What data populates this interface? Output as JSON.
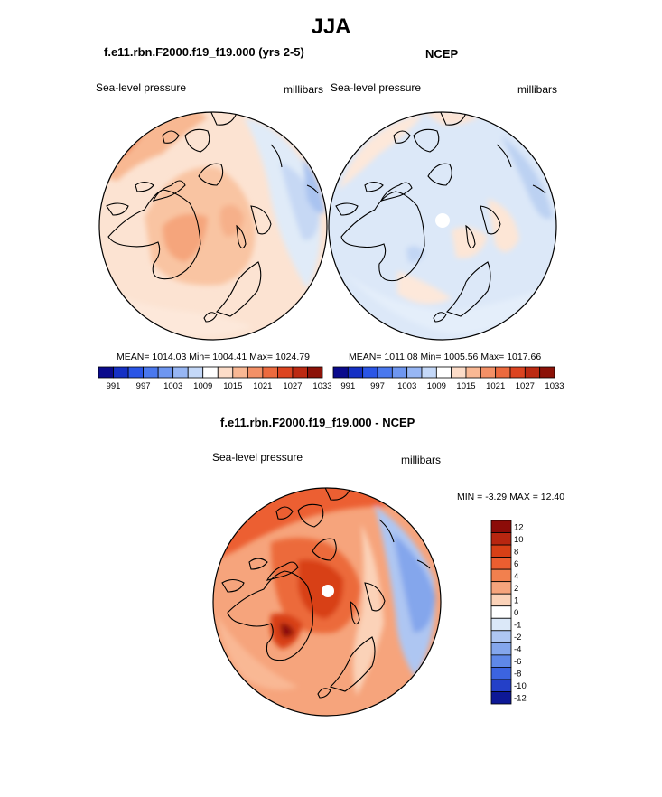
{
  "page": {
    "title": "JJA"
  },
  "panels": [
    {
      "id": "model",
      "title": "f.e11.rbn.F2000.f19_f19.000 (yrs 2-5)",
      "variable_label": "Sea-level pressure",
      "units_label": "millibars",
      "stats_text": "MEAN= 1014.03  Min= 1004.41  Max= 1024.79"
    },
    {
      "id": "obs",
      "title": "NCEP",
      "variable_label": "Sea-level pressure",
      "units_label": "millibars",
      "stats_text": "MEAN= 1011.08  Min= 1005.56  Max= 1017.66"
    },
    {
      "id": "diff",
      "title": "f.e11.rbn.F2000.f19_f19.000 - NCEP",
      "variable_label": "Sea-level pressure",
      "units_label": "millibars",
      "stats_text": "MIN =  -3.29 MAX =  12.40"
    }
  ],
  "colors": {
    "abs_scale": [
      "#0a0a8c",
      "#1530c4",
      "#2a55e6",
      "#4a78ee",
      "#6e96f0",
      "#97b6f4",
      "#c4d8f8",
      "#ffffff",
      "#fcdcc8",
      "#f9b894",
      "#f39066",
      "#ec6a3e",
      "#dc4420",
      "#bc2a12",
      "#8c1208"
    ],
    "diff_scale": [
      "#8c0c08",
      "#b82610",
      "#d84016",
      "#ec5e30",
      "#f2804e",
      "#f6a47c",
      "#fbd2b8",
      "#ffffff",
      "#dbe8f8",
      "#aec6f2",
      "#84a6ec",
      "#5f88e8",
      "#3c64e0",
      "#2440c8",
      "#0d1896"
    ]
  },
  "chart_data": [
    {
      "type": "polar-stereographic-contour",
      "panel": "model",
      "title": "f.e11.rbn.F2000.f19_f19.000 (yrs 2-5)",
      "variable": "Sea-level pressure",
      "units": "millibars",
      "mean": 1014.03,
      "min": 1004.41,
      "max": 1024.79,
      "colorbar_labels": [
        "991",
        "997",
        "1003",
        "1009",
        "1015",
        "1021",
        "1027",
        "1033"
      ]
    },
    {
      "type": "polar-stereographic-contour",
      "panel": "obs",
      "title": "NCEP",
      "variable": "Sea-level pressure",
      "units": "millibars",
      "mean": 1011.08,
      "min": 1005.56,
      "max": 1017.66,
      "colorbar_labels": [
        "991",
        "997",
        "1003",
        "1009",
        "1015",
        "1021",
        "1027",
        "1033"
      ]
    },
    {
      "type": "polar-stereographic-contour",
      "panel": "diff",
      "title": "f.e11.rbn.F2000.f19_f19.000 - NCEP",
      "variable": "Sea-level pressure",
      "units": "millibars",
      "min": -3.29,
      "max": 12.4,
      "colorbar_labels": [
        "12",
        "10",
        "8",
        "6",
        "4",
        "2",
        "1",
        "0",
        "-1",
        "-2",
        "-4",
        "-6",
        "-8",
        "-10",
        "-12"
      ]
    }
  ]
}
